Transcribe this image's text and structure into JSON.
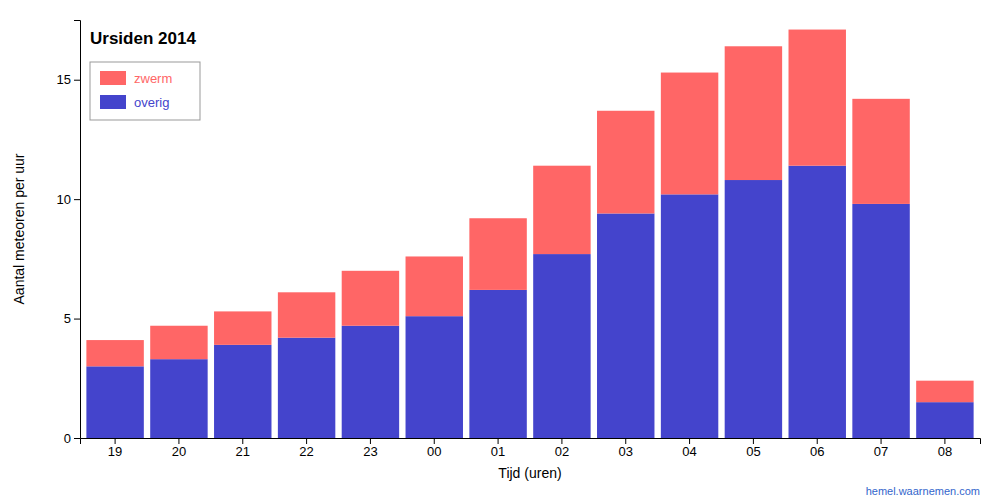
{
  "chart_data": {
    "type": "bar",
    "stacked": true,
    "title": "Ursiden 2014",
    "xlabel": "Tijd (uren)",
    "ylabel": "Aantal meteoren per uur",
    "categories": [
      "19",
      "20",
      "21",
      "22",
      "23",
      "00",
      "01",
      "02",
      "03",
      "04",
      "05",
      "06",
      "07",
      "08"
    ],
    "series": [
      {
        "name": "overig",
        "color": "#4444cc",
        "values": [
          3.0,
          3.3,
          3.9,
          4.2,
          4.7,
          5.1,
          6.2,
          7.7,
          9.4,
          10.2,
          10.8,
          11.4,
          9.8,
          1.5
        ]
      },
      {
        "name": "zwerm",
        "color": "#ff6666",
        "values": [
          1.1,
          1.4,
          1.4,
          1.9,
          2.3,
          2.5,
          3.0,
          3.7,
          4.3,
          5.1,
          5.6,
          5.7,
          4.4,
          0.9
        ]
      }
    ],
    "ylim": [
      0,
      17.5
    ],
    "yticks": [
      0,
      5,
      10,
      15
    ],
    "grid": false,
    "legend": "upper left",
    "annotations": [
      "hemel.waarnemen.com"
    ]
  }
}
